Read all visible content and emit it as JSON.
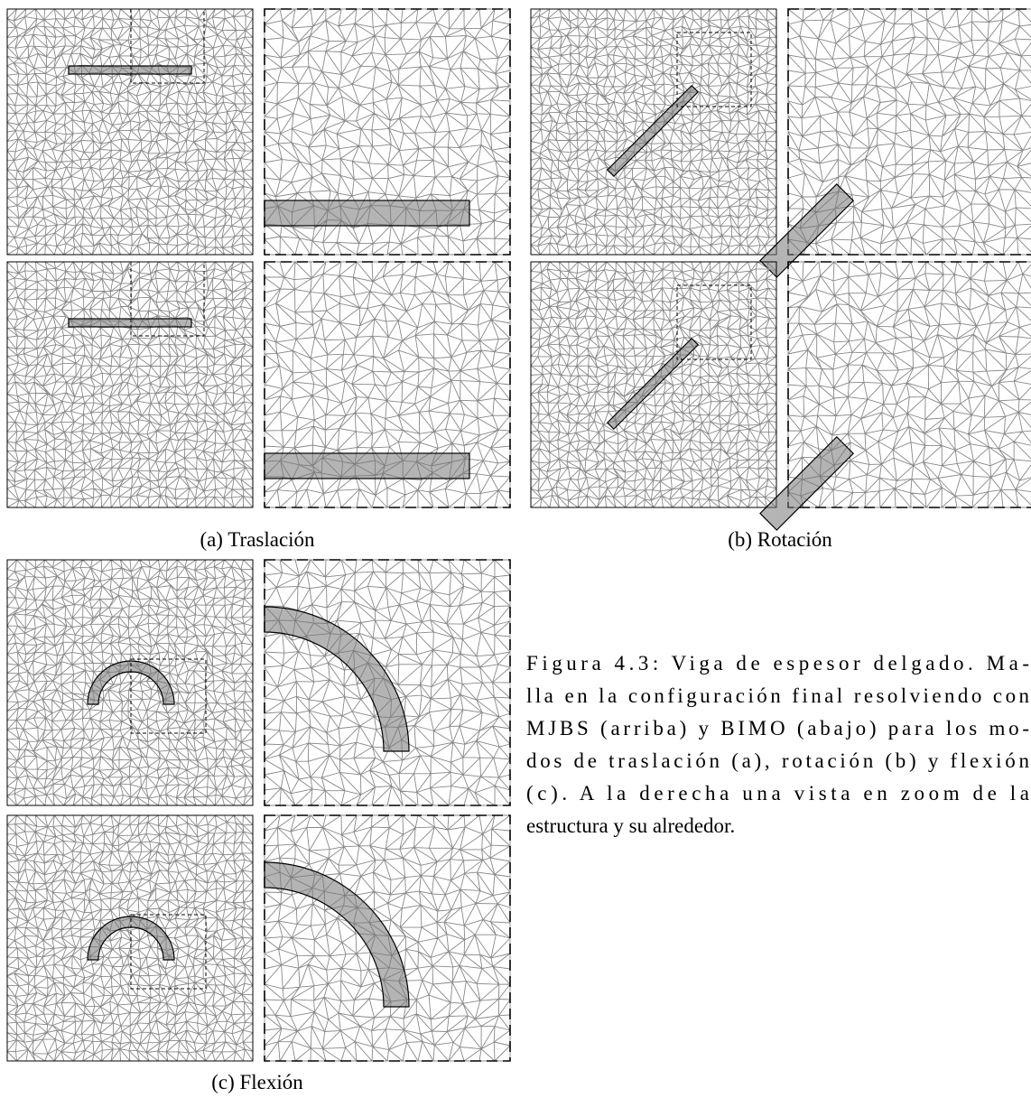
{
  "subfigures": [
    {
      "caption": "(a) Traslación"
    },
    {
      "caption": "(b) Rotación"
    },
    {
      "caption": "(c) Flexión"
    }
  ],
  "caption": {
    "lines": [
      "Figura 4.3: Viga de espesor delgado. Ma-",
      "lla en la configuración final resolviendo con",
      "MJBS (arriba) y BIMO (abajo) para los mo-",
      "dos de traslación (a), rotación (b) y flexión",
      "(c). A la derecha una vista en zoom de la",
      "estructura y su alrededor."
    ]
  }
}
